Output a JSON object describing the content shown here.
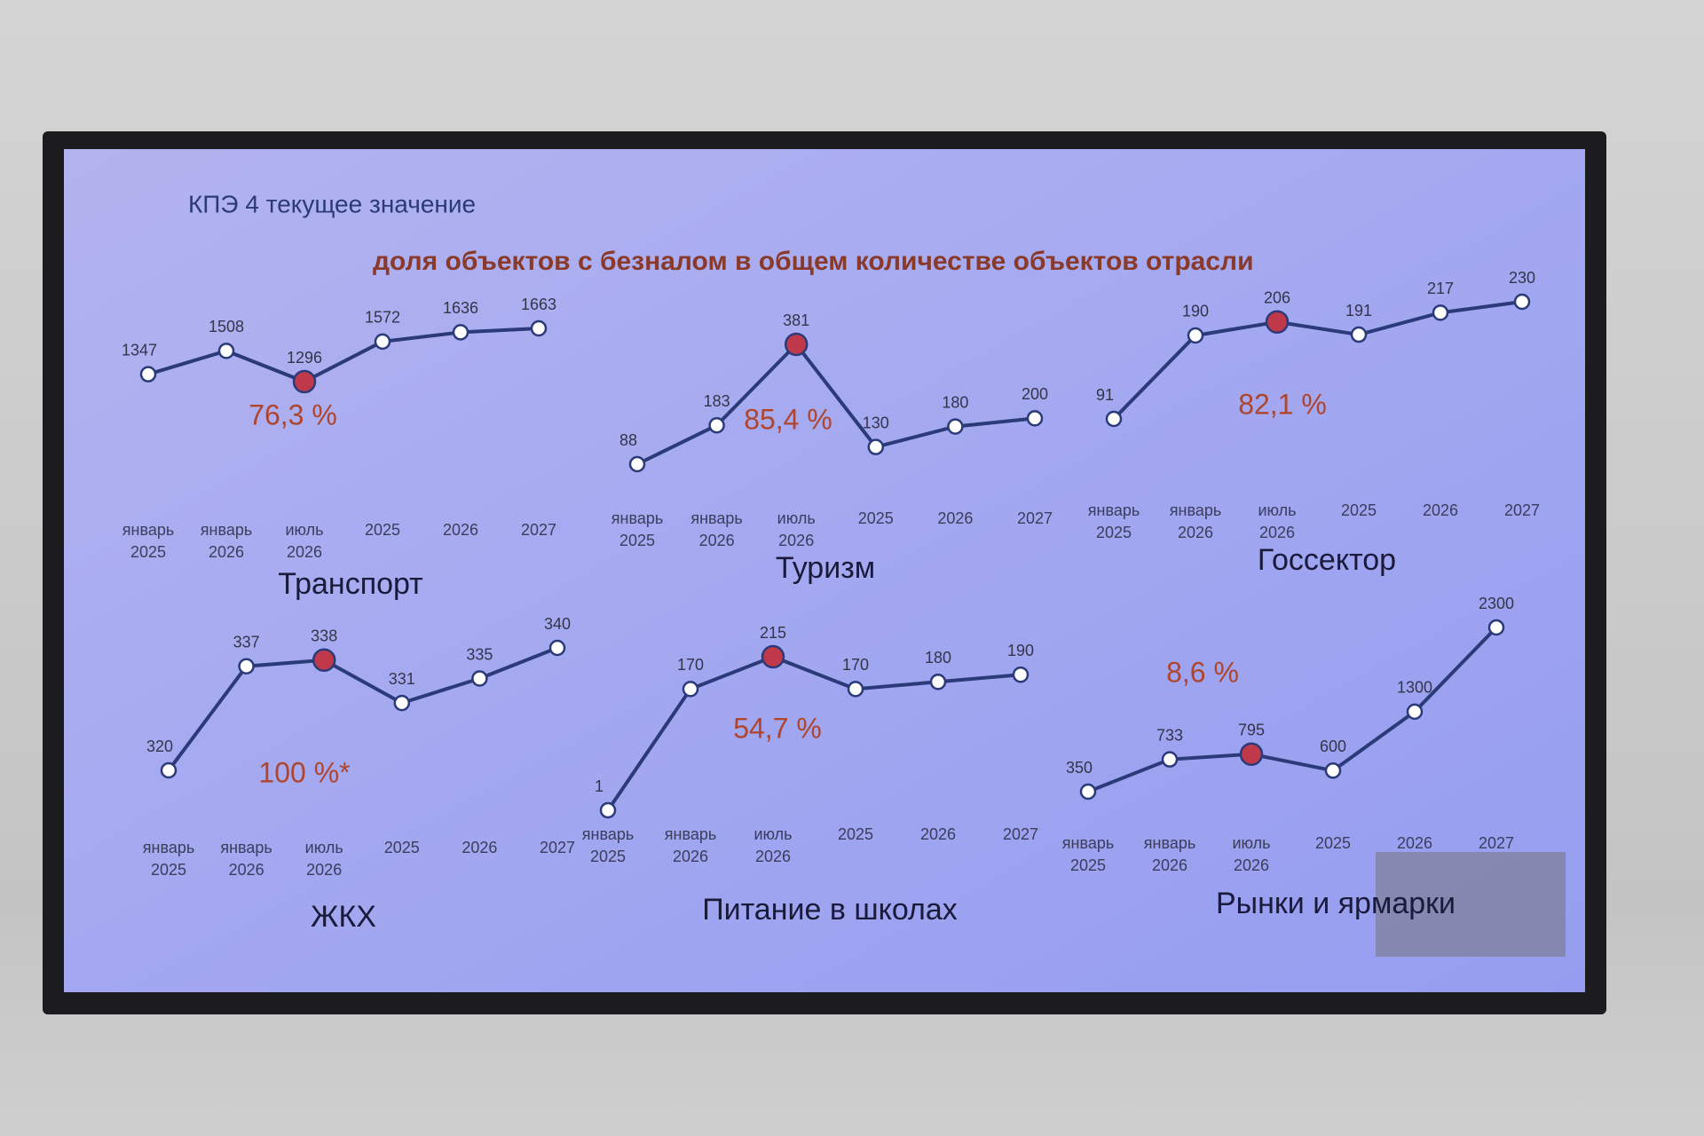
{
  "header": {
    "title": "КПЭ 4 текущее значение",
    "subtitle": "доля объектов с безналом в общем количестве объектов отрасли"
  },
  "chart_data": [
    {
      "type": "line",
      "title": "Транспорт",
      "annotation": "76,3 %",
      "categories": [
        "январь 2025",
        "январь 2026",
        "июль 2026",
        "2025",
        "2026",
        "2027"
      ],
      "values": [
        1347,
        1508,
        1296,
        1572,
        1636,
        1663
      ],
      "color": "#2b3a78",
      "highlight_index": 2,
      "highlight_color": "#c0394b"
    },
    {
      "type": "line",
      "title": "Туризм",
      "annotation": "85,4 %",
      "categories": [
        "январь 2025",
        "январь 2026",
        "июль 2026",
        "2025",
        "2026",
        "2027"
      ],
      "values": [
        88,
        183,
        381,
        130,
        180,
        200
      ],
      "color": "#2b3a78",
      "highlight_index": 2,
      "highlight_color": "#c0394b"
    },
    {
      "type": "line",
      "title": "Госсектор",
      "annotation": "82,1 %",
      "categories": [
        "январь 2025",
        "январь 2026",
        "июль 2026",
        "2025",
        "2026",
        "2027"
      ],
      "values": [
        91,
        190,
        206,
        191,
        217,
        230
      ],
      "color": "#2b3a78",
      "highlight_index": 2,
      "highlight_color": "#c0394b"
    },
    {
      "type": "line",
      "title": "ЖКХ",
      "annotation": "100 %*",
      "categories": [
        "январь 2025",
        "январь 2026",
        "июль 2026",
        "2025",
        "2026",
        "2027"
      ],
      "values": [
        320,
        337,
        338,
        331,
        335,
        340
      ],
      "color": "#2b3a78",
      "highlight_index": 2,
      "highlight_color": "#c0394b"
    },
    {
      "type": "line",
      "title": "Питание в школах",
      "annotation": "54,7 %",
      "categories": [
        "январь 2025",
        "январь 2026",
        "июль 2026",
        "2025",
        "2026",
        "2027"
      ],
      "values": [
        1,
        170,
        215,
        170,
        180,
        190
      ],
      "color": "#2b3a78",
      "highlight_index": 2,
      "highlight_color": "#c0394b"
    },
    {
      "type": "line",
      "title": "Рынки и ярмарки",
      "annotation": "8,6 %",
      "categories": [
        "январь 2025",
        "январь 2026",
        "июль 2026",
        "2025",
        "2026",
        "2027"
      ],
      "values": [
        350,
        733,
        795,
        600,
        1300,
        2300
      ],
      "color": "#2b3a78",
      "highlight_index": 2,
      "highlight_color": "#c0394b"
    }
  ]
}
